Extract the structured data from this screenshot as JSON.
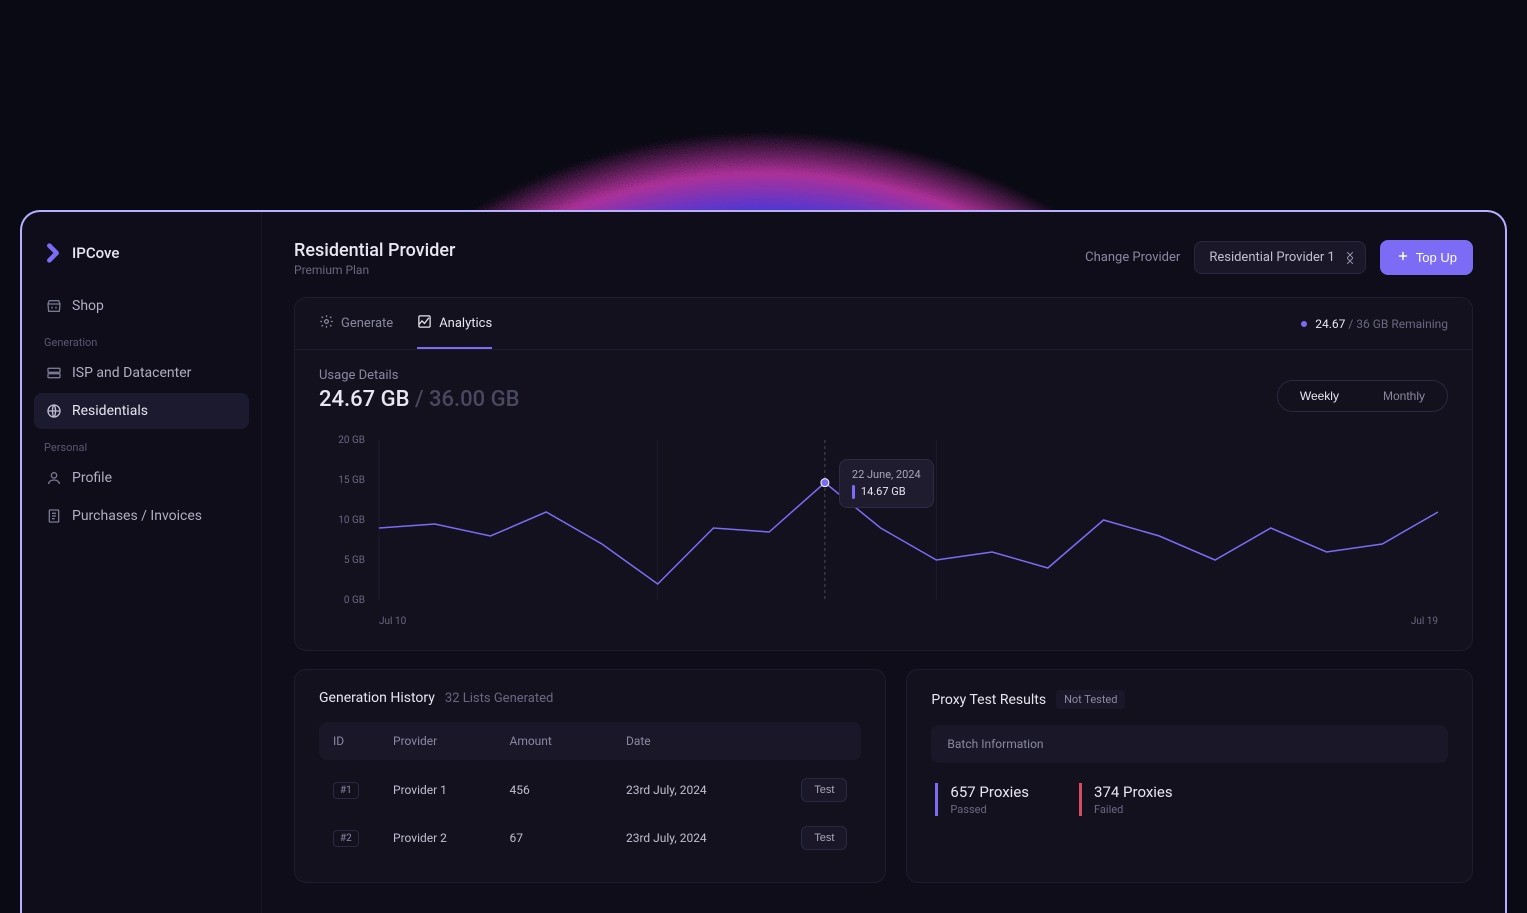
{
  "brand": {
    "name": "IPCove"
  },
  "nav": {
    "shop": "Shop",
    "section_generation": "Generation",
    "isp": "ISP and Datacenter",
    "residentials": "Residentials",
    "section_personal": "Personal",
    "profile": "Profile",
    "purchases": "Purchases / Invoices"
  },
  "header": {
    "title": "Residential Provider",
    "subtitle": "Premium Plan",
    "change_provider": "Change Provider",
    "provider_selected": "Residential Provider 1",
    "topup": "Top Up"
  },
  "tabs": {
    "generate": "Generate",
    "analytics": "Analytics"
  },
  "remaining": {
    "used": "24.67",
    "total": "36 GB Remaining"
  },
  "usage": {
    "title": "Usage Details",
    "used": "24.67 GB",
    "sep": "/",
    "total": "36.00 GB",
    "toggle_weekly": "Weekly",
    "toggle_monthly": "Monthly"
  },
  "chart": {
    "type": "line",
    "y_ticks": [
      "20 GB",
      "15 GB",
      "10 GB",
      "5 GB",
      "0 GB"
    ],
    "ylim": [
      0,
      20
    ],
    "x_labels": {
      "start": "Jul 10",
      "end": "Jul 19"
    },
    "values": [
      9,
      9.5,
      8,
      11,
      7,
      2,
      9,
      8.5,
      14.67,
      9,
      5,
      6,
      4,
      10,
      8,
      5,
      9,
      6,
      7,
      11
    ],
    "line_color": "#7c6cf5",
    "grid_color": "#1e1c2e",
    "background": "#13111e",
    "tick_fontsize": 10,
    "tick_color": "#6a6880",
    "highlight_index": 8,
    "tooltip": {
      "date": "22 June, 2024",
      "value": "14.67 GB"
    }
  },
  "gen_history": {
    "title": "Generation History",
    "subtitle": "32 Lists Generated",
    "columns": {
      "id": "ID",
      "provider": "Provider",
      "amount": "Amount",
      "date": "Date"
    },
    "rows": [
      {
        "id": "#1",
        "provider": "Provider 1",
        "amount": "456",
        "date": "23rd July, 2024"
      },
      {
        "id": "#2",
        "provider": "Provider 2",
        "amount": "67",
        "date": "23rd July, 2024"
      }
    ],
    "test_label": "Test"
  },
  "proxy": {
    "title": "Proxy Test Results",
    "status": "Not Tested",
    "batch_info": "Batch Information",
    "passed_val": "657 Proxies",
    "passed_label": "Passed",
    "failed_val": "374 Proxies",
    "failed_label": "Failed"
  },
  "colors": {
    "accent": "#7c6cf5",
    "danger": "#d84c5f",
    "bg": "#0f0d1a",
    "card": "#13111e",
    "border": "#1e1c2e"
  }
}
